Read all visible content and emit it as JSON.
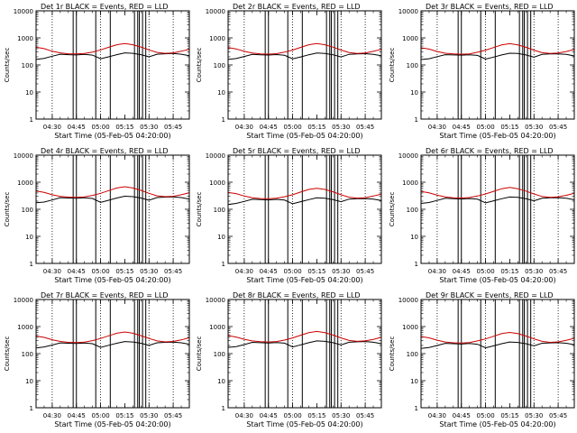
{
  "shared": {
    "ylabel": "Counts/sec",
    "xlabel": "Start Time (05-Feb-05 04:20:00)",
    "xticks": [
      {
        "t": 10,
        "label": "04:30"
      },
      {
        "t": 25,
        "label": "04:45"
      },
      {
        "t": 40,
        "label": "05:00"
      },
      {
        "t": 55,
        "label": "05:15"
      },
      {
        "t": 70,
        "label": "05:30"
      },
      {
        "t": 85,
        "label": "05:45"
      }
    ],
    "yticks": [
      {
        "v": 1,
        "label": "1"
      },
      {
        "v": 10,
        "label": "10"
      },
      {
        "v": 100,
        "label": "100"
      },
      {
        "v": 1000,
        "label": "1000"
      },
      {
        "v": 10000,
        "label": "10000"
      }
    ],
    "xlim_minutes": [
      0,
      95
    ],
    "ylim": [
      1,
      10000
    ],
    "yscale": "log",
    "colors": {
      "events": "#000000",
      "lld": "#cc0000",
      "axes": "#000000"
    }
  },
  "chart_data": [
    {
      "type": "line",
      "title": "Det 1r  BLACK = Events, RED = LLD",
      "x": [
        0,
        5,
        10,
        15,
        20,
        25,
        30,
        35,
        40,
        45,
        50,
        55,
        60,
        65,
        70,
        75,
        80,
        85,
        90,
        95
      ],
      "series": [
        {
          "name": "Events",
          "values": [
            160,
            175,
            210,
            250,
            240,
            235,
            245,
            230,
            170,
            200,
            240,
            280,
            270,
            240,
            200,
            250,
            260,
            265,
            250,
            220
          ]
        },
        {
          "name": "LLD",
          "values": [
            450,
            400,
            320,
            280,
            260,
            255,
            265,
            300,
            360,
            450,
            560,
            620,
            560,
            460,
            360,
            290,
            270,
            280,
            320,
            380
          ]
        }
      ],
      "vlines_dotted": [
        10,
        40,
        70,
        85
      ],
      "vlines_solid": [
        23,
        25,
        37,
        46,
        61,
        63,
        64,
        66,
        68
      ]
    },
    {
      "type": "line",
      "title": "Det 2r  BLACK = Events, RED = LLD",
      "x": [
        0,
        5,
        10,
        15,
        20,
        25,
        30,
        35,
        40,
        45,
        50,
        55,
        60,
        65,
        70,
        75,
        80,
        85,
        90,
        95
      ],
      "series": [
        {
          "name": "Events",
          "values": [
            160,
            172,
            205,
            245,
            238,
            232,
            242,
            228,
            168,
            198,
            238,
            276,
            268,
            238,
            198,
            248,
            258,
            262,
            248,
            218
          ]
        },
        {
          "name": "LLD",
          "values": [
            440,
            392,
            318,
            276,
            258,
            252,
            262,
            298,
            356,
            446,
            556,
            615,
            556,
            456,
            356,
            288,
            268,
            278,
            318,
            376
          ]
        }
      ],
      "vlines_dotted": [
        10,
        40,
        70,
        85
      ],
      "vlines_solid": [
        23,
        25,
        37,
        46,
        61,
        63,
        64,
        66,
        68
      ]
    },
    {
      "type": "line",
      "title": "Det 3r  BLACK = Events, RED = LLD",
      "x": [
        0,
        5,
        10,
        15,
        20,
        25,
        30,
        35,
        40,
        45,
        50,
        55,
        60,
        65,
        70,
        75,
        80,
        85,
        90,
        95
      ],
      "series": [
        {
          "name": "Events",
          "values": [
            158,
            170,
            202,
            240,
            235,
            230,
            238,
            225,
            165,
            195,
            235,
            272,
            265,
            235,
            195,
            245,
            255,
            258,
            245,
            215
          ]
        },
        {
          "name": "LLD",
          "values": [
            430,
            385,
            315,
            272,
            255,
            250,
            258,
            295,
            352,
            440,
            550,
            610,
            550,
            450,
            352,
            285,
            265,
            275,
            315,
            372
          ]
        }
      ],
      "vlines_dotted": [
        10,
        40,
        70,
        85
      ],
      "vlines_solid": [
        23,
        25,
        37,
        46,
        61,
        63,
        64,
        66,
        68
      ]
    },
    {
      "type": "line",
      "title": "Det 4r  BLACK = Events, RED = LLD",
      "x": [
        0,
        5,
        10,
        15,
        20,
        25,
        30,
        35,
        40,
        45,
        50,
        55,
        60,
        65,
        70,
        75,
        80,
        85,
        90,
        95
      ],
      "series": [
        {
          "name": "Events",
          "values": [
            175,
            185,
            220,
            270,
            262,
            258,
            268,
            252,
            180,
            215,
            262,
            305,
            292,
            262,
            215,
            272,
            282,
            288,
            272,
            238
          ]
        },
        {
          "name": "LLD",
          "values": [
            470,
            420,
            345,
            300,
            282,
            278,
            288,
            325,
            390,
            490,
            610,
            680,
            610,
            500,
            390,
            315,
            292,
            302,
            345,
            410
          ]
        }
      ],
      "vlines_dotted": [
        10,
        40,
        70,
        85
      ],
      "vlines_solid": [
        23,
        25,
        37,
        46,
        61,
        63,
        64,
        66,
        68
      ]
    },
    {
      "type": "line",
      "title": "Det 5r  BLACK = Events, RED = LLD",
      "x": [
        0,
        5,
        10,
        15,
        20,
        25,
        30,
        35,
        40,
        45,
        50,
        55,
        60,
        65,
        70,
        75,
        80,
        85,
        90,
        95
      ],
      "series": [
        {
          "name": "Events",
          "values": [
            150,
            165,
            195,
            235,
            228,
            222,
            232,
            218,
            160,
            190,
            228,
            265,
            255,
            228,
            190,
            238,
            246,
            250,
            238,
            210
          ]
        },
        {
          "name": "LLD",
          "values": [
            420,
            380,
            310,
            268,
            250,
            245,
            255,
            290,
            345,
            432,
            540,
            600,
            540,
            442,
            345,
            280,
            260,
            268,
            308,
            365
          ]
        }
      ],
      "vlines_dotted": [
        10,
        40,
        70,
        85
      ],
      "vlines_solid": [
        23,
        25,
        37,
        46,
        61,
        63,
        64,
        66,
        68
      ]
    },
    {
      "type": "line",
      "title": "Det 6r  BLACK = Events, RED = LLD",
      "x": [
        0,
        5,
        10,
        15,
        20,
        25,
        30,
        35,
        40,
        45,
        50,
        55,
        60,
        65,
        70,
        75,
        80,
        85,
        90,
        95
      ],
      "series": [
        {
          "name": "Events",
          "values": [
            165,
            178,
            212,
            255,
            246,
            240,
            250,
            236,
            172,
            205,
            246,
            285,
            275,
            246,
            205,
            255,
            265,
            270,
            255,
            225
          ]
        },
        {
          "name": "LLD",
          "values": [
            455,
            405,
            330,
            288,
            268,
            262,
            272,
            308,
            368,
            462,
            575,
            640,
            575,
            470,
            368,
            298,
            276,
            286,
            328,
            390
          ]
        }
      ],
      "vlines_dotted": [
        10,
        40,
        70,
        85
      ],
      "vlines_solid": [
        23,
        25,
        37,
        46,
        61,
        63,
        64,
        66,
        68
      ]
    },
    {
      "type": "line",
      "title": "Det 7r  BLACK = Events, RED = LLD",
      "x": [
        0,
        5,
        10,
        15,
        20,
        25,
        30,
        35,
        40,
        45,
        50,
        55,
        60,
        65,
        70,
        75,
        80,
        85,
        90,
        95
      ],
      "series": [
        {
          "name": "Events",
          "values": [
            162,
            176,
            208,
            250,
            242,
            236,
            246,
            232,
            170,
            202,
            242,
            280,
            270,
            242,
            202,
            252,
            262,
            266,
            252,
            222
          ]
        },
        {
          "name": "LLD",
          "values": [
            445,
            398,
            325,
            282,
            262,
            258,
            268,
            302,
            362,
            455,
            568,
            630,
            568,
            462,
            362,
            294,
            272,
            282,
            322,
            385
          ]
        }
      ],
      "vlines_dotted": [
        10,
        40,
        70,
        85
      ],
      "vlines_solid": [
        23,
        25,
        37,
        46,
        61,
        63,
        64,
        66,
        68
      ]
    },
    {
      "type": "line",
      "title": "Det 8r  BLACK = Events, RED = LLD",
      "x": [
        0,
        5,
        10,
        15,
        20,
        25,
        30,
        35,
        40,
        45,
        50,
        55,
        60,
        65,
        70,
        75,
        80,
        85,
        90,
        95
      ],
      "series": [
        {
          "name": "Events",
          "values": [
            170,
            182,
            216,
            262,
            254,
            248,
            258,
            244,
            176,
            210,
            254,
            295,
            284,
            254,
            210,
            264,
            274,
            280,
            264,
            232
          ]
        },
        {
          "name": "LLD",
          "values": [
            462,
            412,
            338,
            294,
            275,
            270,
            280,
            316,
            380,
            478,
            595,
            660,
            595,
            485,
            380,
            306,
            284,
            294,
            336,
            400
          ]
        }
      ],
      "vlines_dotted": [
        10,
        40,
        70,
        85
      ],
      "vlines_solid": [
        23,
        25,
        37,
        46,
        61,
        63,
        64,
        66,
        68
      ]
    },
    {
      "type": "line",
      "title": "Det 9r  BLACK = Events, RED = LLD",
      "x": [
        0,
        5,
        10,
        15,
        20,
        25,
        30,
        35,
        40,
        45,
        50,
        55,
        60,
        65,
        70,
        75,
        80,
        85,
        90,
        95
      ],
      "series": [
        {
          "name": "Events",
          "values": [
            155,
            168,
            200,
            240,
            232,
            226,
            236,
            222,
            164,
            194,
            232,
            270,
            260,
            232,
            194,
            242,
            250,
            254,
            242,
            214
          ]
        },
        {
          "name": "LLD",
          "values": [
            428,
            384,
            314,
            270,
            252,
            248,
            258,
            294,
            350,
            438,
            548,
            608,
            548,
            448,
            350,
            284,
            262,
            272,
            312,
            370
          ]
        }
      ],
      "vlines_dotted": [
        10,
        40,
        70,
        85
      ],
      "vlines_solid": [
        23,
        25,
        37,
        46,
        61,
        63,
        64,
        66,
        68
      ]
    }
  ]
}
